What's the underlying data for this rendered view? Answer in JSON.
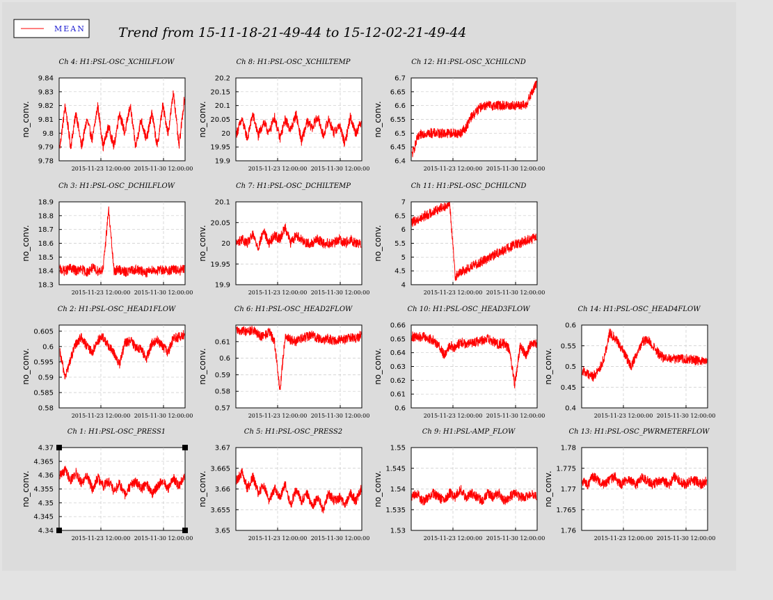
{
  "title": "Trend from 15-11-18-21-49-44 to 15-12-02-21-49-44",
  "legend": {
    "label": "MEAN",
    "color": "#ff0000"
  },
  "colors": {
    "series": "#ff0000",
    "background": "#dcdcdc",
    "outer": "#e3e3e3"
  },
  "chart_data": [
    {
      "type": "line",
      "title": "Ch 4: H1:PSL-OSC_XCHILFLOW",
      "ylabel": "no_conv.",
      "yticks": [
        "9.84",
        "9.83",
        "9.82",
        "9.81",
        "9.8",
        "9.79",
        "9.78"
      ],
      "ylim": [
        9.78,
        9.84
      ],
      "xticks": [
        "2015-11-23 12:00:00",
        "2015-11-30 12:00:00"
      ],
      "grid": true,
      "series": [
        {
          "values": [
            9.79,
            9.82,
            9.79,
            9.815,
            9.79,
            9.81,
            9.795,
            9.82,
            9.79,
            9.805,
            9.79,
            9.815,
            9.8,
            9.82,
            9.79,
            9.81,
            9.795,
            9.815,
            9.79,
            9.82,
            9.8,
            9.83,
            9.79,
            9.825
          ]
        }
      ]
    },
    {
      "type": "line",
      "title": "Ch 8: H1:PSL-OSC_XCHILTEMP",
      "ylabel": "no_conv.",
      "yticks": [
        "20.2",
        "20.15",
        "20.1",
        "20.05",
        "20",
        "19.95",
        "19.9"
      ],
      "ylim": [
        19.9,
        20.2
      ],
      "xticks": [
        "2015-11-23 12:00:00",
        "2015-11-30 12:00:00"
      ],
      "grid": true,
      "series": [
        {
          "values": [
            20.0,
            20.05,
            19.98,
            20.07,
            19.99,
            20.04,
            20.0,
            20.06,
            19.98,
            20.05,
            20.01,
            20.07,
            19.97,
            20.04,
            20.02,
            20.06,
            19.99,
            20.05,
            20.0,
            20.03,
            19.96,
            20.06,
            20.0,
            20.04
          ]
        }
      ]
    },
    {
      "type": "line",
      "title": "Ch 12: H1:PSL-OSC_XCHILCND",
      "ylabel": "no_conv.",
      "yticks": [
        "6.7",
        "6.65",
        "6.6",
        "6.55",
        "6.5",
        "6.45",
        "6.4"
      ],
      "ylim": [
        6.4,
        6.7
      ],
      "xticks": [
        "2015-11-23 12:00:00",
        "2015-11-30 12:00:00"
      ],
      "grid": true,
      "series": [
        {
          "values": [
            6.42,
            6.48,
            6.5,
            6.5,
            6.5,
            6.5,
            6.5,
            6.5,
            6.5,
            6.5,
            6.52,
            6.56,
            6.58,
            6.6,
            6.6,
            6.6,
            6.6,
            6.6,
            6.6,
            6.6,
            6.6,
            6.6,
            6.64,
            6.68
          ]
        }
      ]
    },
    {
      "type": "line",
      "title": "Ch 3: H1:PSL-OSC_DCHILFLOW",
      "ylabel": "no_conv.",
      "yticks": [
        "18.9",
        "18.8",
        "18.7",
        "18.6",
        "18.5",
        "18.4",
        "18.3"
      ],
      "ylim": [
        18.3,
        18.9
      ],
      "xticks": [
        "2015-11-23 12:00:00",
        "2015-11-30 12:00:00"
      ],
      "grid": true,
      "series": [
        {
          "values": [
            18.41,
            18.4,
            18.42,
            18.4,
            18.41,
            18.39,
            18.42,
            18.4,
            18.41,
            18.85,
            18.4,
            18.41,
            18.39,
            18.4,
            18.41,
            18.4,
            18.39,
            18.41,
            18.4,
            18.41,
            18.4,
            18.41,
            18.4,
            18.41
          ]
        }
      ]
    },
    {
      "type": "line",
      "title": "Ch 7: H1:PSL-OSC_DCHILTEMP",
      "ylabel": "no_conv.",
      "yticks": [
        "20.1",
        "20.05",
        "20",
        "19.95",
        "19.9"
      ],
      "ylim": [
        19.9,
        20.1
      ],
      "xticks": [
        "2015-11-23 12:00:00",
        "2015-11-30 12:00:00"
      ],
      "grid": true,
      "series": [
        {
          "values": [
            20.0,
            20.01,
            20.0,
            20.02,
            19.99,
            20.03,
            20.0,
            20.02,
            20.01,
            20.04,
            20.0,
            20.02,
            20.01,
            20.0,
            20.0,
            20.01,
            20.0,
            20.0,
            20.0,
            20.01,
            20.0,
            20.01,
            20.0,
            20.0
          ]
        }
      ]
    },
    {
      "type": "line",
      "title": "Ch 11: H1:PSL-OSC_DCHILCND",
      "ylabel": "no_conv.",
      "yticks": [
        "7",
        "6.5",
        "6",
        "5.5",
        "5",
        "4.5",
        "4"
      ],
      "ylim": [
        4,
        7
      ],
      "xticks": [
        "2015-11-23 12:00:00",
        "2015-11-30 12:00:00"
      ],
      "grid": true,
      "series": [
        {
          "values": [
            6.25,
            6.35,
            6.45,
            6.55,
            6.65,
            6.75,
            6.85,
            6.9,
            4.3,
            4.45,
            4.55,
            4.65,
            4.75,
            4.85,
            4.95,
            5.05,
            5.15,
            5.25,
            5.35,
            5.45,
            5.5,
            5.6,
            5.65,
            5.7
          ]
        }
      ]
    },
    {
      "type": "line",
      "title": "Ch 2: H1:PSL-OSC_HEAD1FLOW",
      "ylabel": "no_conv.",
      "yticks": [
        "0.605",
        "0.6",
        "0.595",
        "0.59",
        "0.585",
        "0.58"
      ],
      "ylim": [
        0.58,
        0.607
      ],
      "xticks": [
        "2015-11-23 12:00:00",
        "2015-11-30 12:00:00"
      ],
      "grid": true,
      "series": [
        {
          "values": [
            0.598,
            0.59,
            0.596,
            0.601,
            0.603,
            0.6,
            0.598,
            0.602,
            0.603,
            0.6,
            0.598,
            0.594,
            0.601,
            0.602,
            0.6,
            0.599,
            0.596,
            0.601,
            0.602,
            0.6,
            0.598,
            0.603,
            0.603,
            0.604
          ]
        }
      ]
    },
    {
      "type": "line",
      "title": "Ch 6: H1:PSL-OSC_HEAD2FLOW",
      "ylabel": "no_conv.",
      "yticks": [
        "0.61",
        "0.6",
        "0.59",
        "0.58",
        "0.57"
      ],
      "ylim": [
        0.57,
        0.62
      ],
      "xticks": [
        "2015-11-23 12:00:00",
        "2015-11-30 12:00:00"
      ],
      "grid": true,
      "series": [
        {
          "values": [
            0.616,
            0.617,
            0.616,
            0.617,
            0.614,
            0.613,
            0.616,
            0.61,
            0.58,
            0.614,
            0.611,
            0.61,
            0.612,
            0.613,
            0.614,
            0.612,
            0.611,
            0.612,
            0.61,
            0.612,
            0.611,
            0.613,
            0.612,
            0.614
          ]
        }
      ]
    },
    {
      "type": "line",
      "title": "Ch 10: H1:PSL-OSC_HEAD3FLOW",
      "ylabel": "no_conv.",
      "yticks": [
        "0.66",
        "0.65",
        "0.64",
        "0.63",
        "0.62",
        "0.61",
        "0.6"
      ],
      "ylim": [
        0.6,
        0.66
      ],
      "xticks": [
        "2015-11-23 12:00:00",
        "2015-11-30 12:00:00"
      ],
      "grid": true,
      "series": [
        {
          "values": [
            0.652,
            0.651,
            0.652,
            0.65,
            0.649,
            0.645,
            0.638,
            0.646,
            0.643,
            0.648,
            0.646,
            0.647,
            0.648,
            0.649,
            0.65,
            0.648,
            0.646,
            0.647,
            0.642,
            0.617,
            0.645,
            0.638,
            0.647,
            0.646
          ]
        }
      ]
    },
    {
      "type": "line",
      "title": "Ch 14: H1:PSL-OSC_HEAD4FLOW",
      "ylabel": "no_conv.",
      "yticks": [
        "0.6",
        "0.55",
        "0.5",
        "0.45",
        "0.4"
      ],
      "ylim": [
        0.4,
        0.6
      ],
      "xticks": [
        "2015-11-23 12:00:00",
        "2015-11-30 12:00:00"
      ],
      "grid": true,
      "series": [
        {
          "values": [
            0.49,
            0.483,
            0.475,
            0.49,
            0.52,
            0.58,
            0.57,
            0.55,
            0.525,
            0.5,
            0.53,
            0.56,
            0.565,
            0.55,
            0.532,
            0.52,
            0.52,
            0.518,
            0.52,
            0.518,
            0.517,
            0.515,
            0.512,
            0.51
          ]
        }
      ]
    },
    {
      "type": "line",
      "title": "Ch 1: H1:PSL-OSC_PRESS1",
      "ylabel": "no_conv.",
      "yticks": [
        "4.37",
        "4.365",
        "4.36",
        "4.355",
        "4.35",
        "4.345",
        "4.34"
      ],
      "ylim": [
        4.34,
        4.37
      ],
      "xticks": [
        "2015-11-23 12:00:00",
        "2015-11-30 12:00:00"
      ],
      "grid": true,
      "series": [
        {
          "values": [
            4.36,
            4.362,
            4.358,
            4.361,
            4.357,
            4.36,
            4.355,
            4.359,
            4.356,
            4.358,
            4.354,
            4.357,
            4.353,
            4.356,
            4.358,
            4.355,
            4.357,
            4.353,
            4.356,
            4.358,
            4.355,
            4.359,
            4.356,
            4.36
          ]
        }
      ]
    },
    {
      "type": "line",
      "title": "Ch 5: H1:PSL-OSC_PRESS2",
      "ylabel": "no_conv.",
      "yticks": [
        "3.67",
        "3.665",
        "3.66",
        "3.655",
        "3.65"
      ],
      "ylim": [
        3.65,
        3.67
      ],
      "xticks": [
        "2015-11-23 12:00:00",
        "2015-11-30 12:00:00"
      ],
      "grid": true,
      "series": [
        {
          "values": [
            3.662,
            3.664,
            3.66,
            3.663,
            3.659,
            3.661,
            3.657,
            3.66,
            3.658,
            3.661,
            3.656,
            3.66,
            3.657,
            3.659,
            3.656,
            3.658,
            3.655,
            3.659,
            3.657,
            3.658,
            3.656,
            3.659,
            3.657,
            3.66
          ]
        }
      ]
    },
    {
      "type": "line",
      "title": "Ch 9: H1:PSL-AMP_FLOW",
      "ylabel": "no_conv.",
      "yticks": [
        "1.55",
        "1.545",
        "1.54",
        "1.535",
        "1.53"
      ],
      "ylim": [
        1.53,
        1.55
      ],
      "xticks": [
        "2015-11-23 12:00:00",
        "2015-11-30 12:00:00"
      ],
      "grid": true,
      "series": [
        {
          "values": [
            1.538,
            1.539,
            1.537,
            1.538,
            1.539,
            1.538,
            1.537,
            1.539,
            1.538,
            1.54,
            1.538,
            1.539,
            1.538,
            1.537,
            1.539,
            1.538,
            1.539,
            1.537,
            1.538,
            1.539,
            1.538,
            1.538,
            1.539,
            1.538
          ]
        }
      ]
    },
    {
      "type": "line",
      "title": "Ch 13: H1:PSL-OSC_PWRMETERFLOW",
      "ylabel": "no_conv.",
      "yticks": [
        "1.78",
        "1.775",
        "1.77",
        "1.765",
        "1.76"
      ],
      "ylim": [
        1.76,
        1.78
      ],
      "xticks": [
        "2015-11-23 12:00:00",
        "2015-11-30 12:00:00"
      ],
      "grid": true,
      "series": [
        {
          "values": [
            1.772,
            1.771,
            1.773,
            1.772,
            1.771,
            1.772,
            1.773,
            1.771,
            1.772,
            1.772,
            1.771,
            1.773,
            1.772,
            1.771,
            1.772,
            1.772,
            1.771,
            1.773,
            1.772,
            1.771,
            1.772,
            1.772,
            1.771,
            1.772
          ]
        }
      ]
    }
  ]
}
